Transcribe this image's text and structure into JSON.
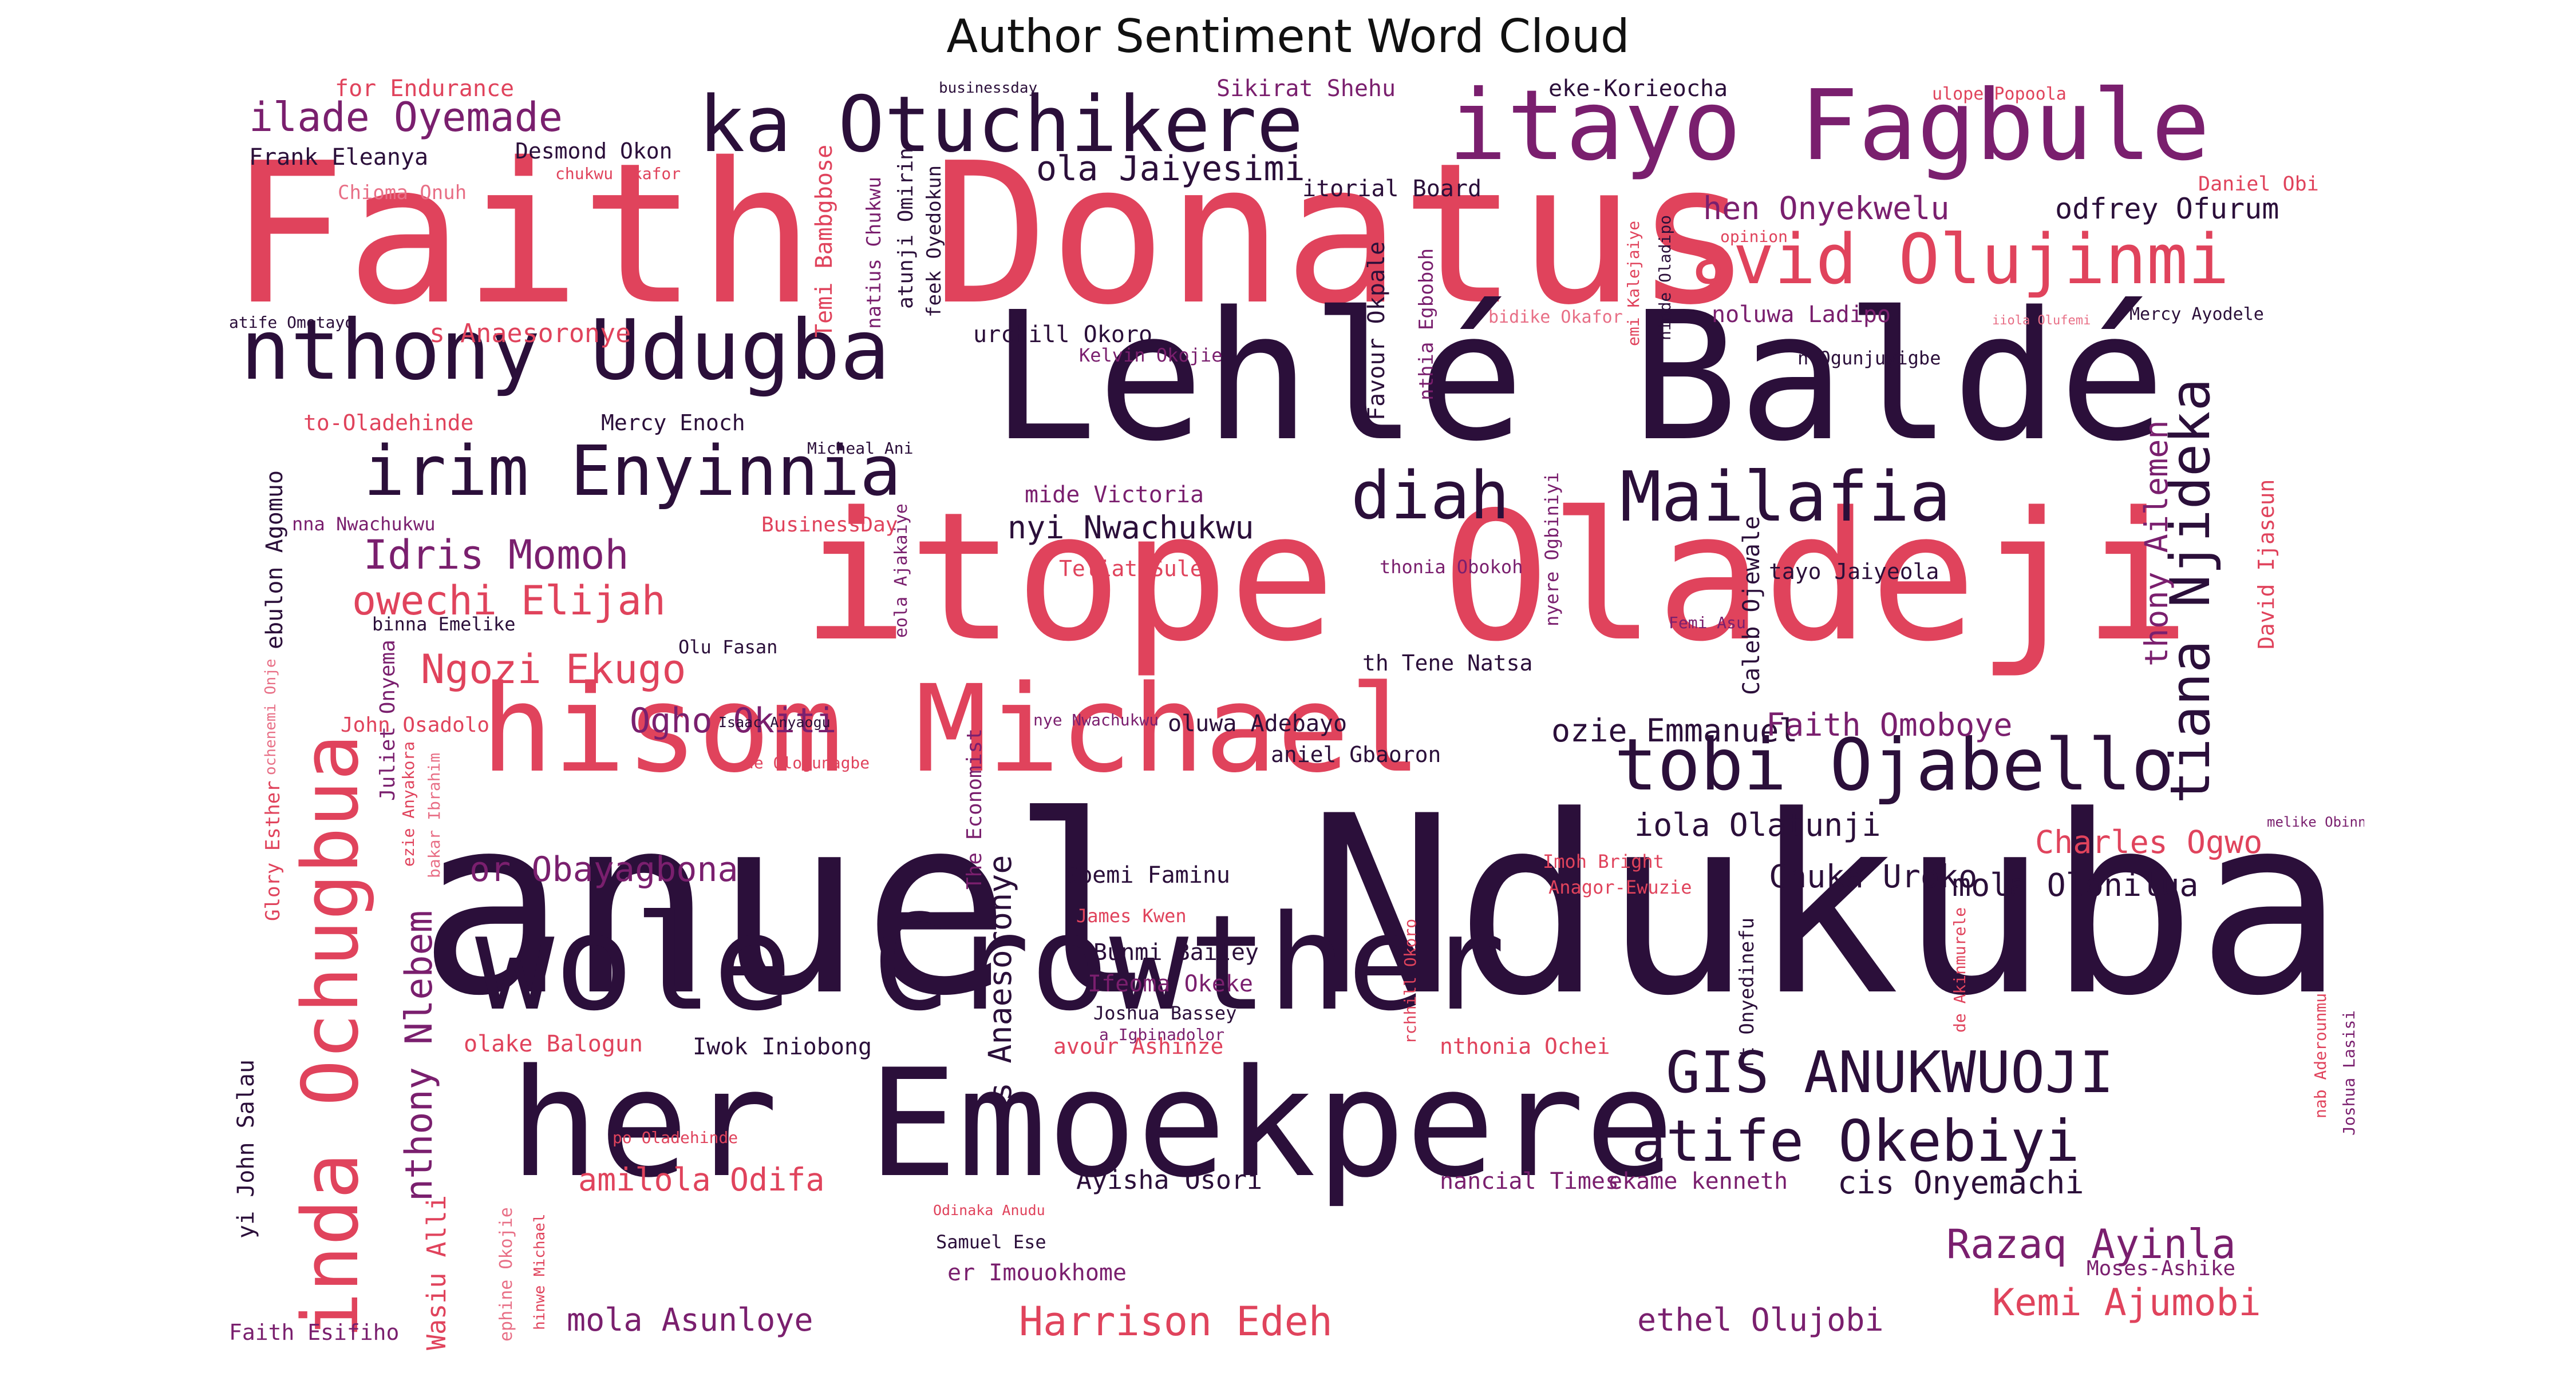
{
  "title": "Author Sentiment Word Cloud",
  "colors": {
    "dark": "#2b0f3a",
    "purple": "#7a1f6e",
    "red": "#e0435c",
    "pink": "#e86f86"
  },
  "words": [
    {
      "text": "anuel Ndukuba",
      "color": "dark"
    },
    {
      "text": "Faith Donatus",
      "color": "red"
    },
    {
      "text": "itope Oladeji",
      "color": "red"
    },
    {
      "text": "Lehlé Baldé",
      "color": "dark"
    },
    {
      "text": "her Emoekpere",
      "color": "dark"
    },
    {
      "text": "wole Crowther",
      "color": "dark"
    },
    {
      "text": "hisom Michael",
      "color": "red"
    },
    {
      "text": "itayo Fagbule",
      "color": "purple"
    },
    {
      "text": "ka Otuchikere",
      "color": "dark"
    },
    {
      "text": "nthony Udugba",
      "color": "dark"
    },
    {
      "text": "inda Ochugbua",
      "color": "red"
    },
    {
      "text": "tobi Ojabello",
      "color": "dark"
    },
    {
      "text": "avid Olujinmi",
      "color": "red"
    },
    {
      "text": "irim Enyinnia",
      "color": "dark"
    },
    {
      "text": "Mailafia",
      "color": "dark"
    },
    {
      "text": "diah",
      "color": "dark"
    },
    {
      "text": "GIS ANUKWUOJI",
      "color": "dark"
    },
    {
      "text": "atife Okebiyi",
      "color": "dark"
    },
    {
      "text": "tiana Njideka",
      "color": "dark"
    },
    {
      "text": "ilade Oyemade",
      "color": "purple"
    },
    {
      "text": "Idris Momoh",
      "color": "purple"
    },
    {
      "text": "owechi Elijah",
      "color": "red"
    },
    {
      "text": "Ngozi Ekugo",
      "color": "red"
    },
    {
      "text": "Ogho Okiti",
      "color": "purple"
    },
    {
      "text": "or Obayagbona",
      "color": "purple"
    },
    {
      "text": "nthony Nlebem",
      "color": "purple"
    },
    {
      "text": "ola Jaiyesimi",
      "color": "dark"
    },
    {
      "text": "hen Onyekwelu",
      "color": "purple"
    },
    {
      "text": "odfrey Ofurum",
      "color": "dark"
    },
    {
      "text": "nyi Nwachukwu",
      "color": "dark"
    },
    {
      "text": "Harrison Edeh",
      "color": "red"
    },
    {
      "text": "Razaq Ayinla",
      "color": "purple"
    },
    {
      "text": "Kemi Ajumobi",
      "color": "red"
    },
    {
      "text": "amilola Odifa",
      "color": "red"
    },
    {
      "text": "mola Asunloye",
      "color": "purple"
    },
    {
      "text": "ethel Olujobi",
      "color": "purple"
    },
    {
      "text": "cis Onyemachi",
      "color": "dark"
    },
    {
      "text": "Charles Ogwo",
      "color": "red"
    },
    {
      "text": "Chuka Uroko",
      "color": "dark"
    },
    {
      "text": "mola Olonilua",
      "color": "dark"
    },
    {
      "text": "iola Olatunji",
      "color": "dark"
    },
    {
      "text": "ozie Emmanuel",
      "color": "dark"
    },
    {
      "text": "Faith Omoboye",
      "color": "purple"
    },
    {
      "text": "thony Ailemen",
      "color": "purple"
    },
    {
      "text": "s Anaesoronye",
      "color": "dark"
    },
    {
      "text": "Frank Eleanya",
      "color": "dark"
    },
    {
      "text": "Desmond Okon",
      "color": "dark"
    },
    {
      "text": "chukwu Okafor",
      "color": "red"
    },
    {
      "text": "Chioma Onuh",
      "color": "pink"
    },
    {
      "text": "for Endurance",
      "color": "red"
    },
    {
      "text": "businessday",
      "color": "dark"
    },
    {
      "text": "Sikirat Shehu",
      "color": "purple"
    },
    {
      "text": "eke-Korieocha",
      "color": "dark"
    },
    {
      "text": "ulope Popoola",
      "color": "red"
    },
    {
      "text": "Daniel Obi",
      "color": "red"
    },
    {
      "text": "opinion",
      "color": "red"
    },
    {
      "text": "itorial Board",
      "color": "dark"
    },
    {
      "text": "Temi Bambgbose",
      "color": "red"
    },
    {
      "text": "natius Chukwu",
      "color": "purple"
    },
    {
      "text": "atunji Omirin",
      "color": "dark"
    },
    {
      "text": "feek Oyedokun",
      "color": "dark"
    },
    {
      "text": "urchill Okoro",
      "color": "dark"
    },
    {
      "text": "Kelvin Okojie",
      "color": "purple"
    },
    {
      "text": "Favour Okpale",
      "color": "dark"
    },
    {
      "text": "nthia Egboboh",
      "color": "purple"
    },
    {
      "text": "bidike Okafor",
      "color": "pink"
    },
    {
      "text": "emi Kalejaiye",
      "color": "red"
    },
    {
      "text": "hinde Oladipo",
      "color": "dark"
    },
    {
      "text": "noluwa Ladipo",
      "color": "purple"
    },
    {
      "text": "iiola Olufemi",
      "color": "pink"
    },
    {
      "text": "Mercy Ayodele",
      "color": "dark"
    },
    {
      "text": "n Ogunjuyigbe",
      "color": "dark"
    },
    {
      "text": "atife Omotayo",
      "color": "dark"
    },
    {
      "text": "s Anaesoronye",
      "color": "red"
    },
    {
      "text": "to-Oladehinde",
      "color": "red"
    },
    {
      "text": "Mercy Enoch",
      "color": "dark"
    },
    {
      "text": "Micheal Ani",
      "color": "dark"
    },
    {
      "text": "ebulon Agomuo",
      "color": "dark"
    },
    {
      "text": "nna Nwachukwu",
      "color": "purple"
    },
    {
      "text": "BusinessDay",
      "color": "red"
    },
    {
      "text": "mide Victoria",
      "color": "purple"
    },
    {
      "text": "Teliat Sule",
      "color": "red"
    },
    {
      "text": "thonia Obokoh",
      "color": "purple"
    },
    {
      "text": "nyere Ogbiniyi",
      "color": "purple"
    },
    {
      "text": "Caleb Ojewale",
      "color": "dark"
    },
    {
      "text": "tayo Jaiyeola",
      "color": "dark"
    },
    {
      "text": "David Ijaseun",
      "color": "red"
    },
    {
      "text": "binna Emelike",
      "color": "dark"
    },
    {
      "text": "Olu Fasan",
      "color": "dark"
    },
    {
      "text": "eola Ajakaiye",
      "color": "purple"
    },
    {
      "text": "Femi Asu",
      "color": "purple"
    },
    {
      "text": "th Tene Natsa",
      "color": "dark"
    },
    {
      "text": "John Osadolor",
      "color": "red"
    },
    {
      "text": "ochenemi Onje",
      "color": "pink"
    },
    {
      "text": "Juliet Onyema",
      "color": "purple"
    },
    {
      "text": "Isaac Anyaogu",
      "color": "dark"
    },
    {
      "text": "ezie Anyakora",
      "color": "red"
    },
    {
      "text": "bakar Ibrahim",
      "color": "pink"
    },
    {
      "text": "de Ologunagbe",
      "color": "red"
    },
    {
      "text": "The Economist",
      "color": "purple"
    },
    {
      "text": "nye Nwachukwu",
      "color": "purple"
    },
    {
      "text": "oluwa Adebayo",
      "color": "dark"
    },
    {
      "text": "aniel Gbaoron",
      "color": "dark"
    },
    {
      "text": "melike Obinna",
      "color": "purple"
    },
    {
      "text": "Glory Esther",
      "color": "red"
    },
    {
      "text": "Gbemi Faminu",
      "color": "dark"
    },
    {
      "text": "Imoh Bright",
      "color": "red"
    },
    {
      "text": "Anagor-Ewuzie",
      "color": "red"
    },
    {
      "text": "James Kwen",
      "color": "red"
    },
    {
      "text": "Bunmi Bailey",
      "color": "dark"
    },
    {
      "text": "Ifeoma Okeke",
      "color": "purple"
    },
    {
      "text": "Joshua Bassey",
      "color": "dark"
    },
    {
      "text": "a Igbinadolor",
      "color": "purple"
    },
    {
      "text": "rchhill Okoro",
      "color": "red"
    },
    {
      "text": "ft Onyedinefu",
      "color": "dark"
    },
    {
      "text": "de Akinmurele",
      "color": "red"
    },
    {
      "text": "nab Aderounmu",
      "color": "red"
    },
    {
      "text": "Joshua Lasisi",
      "color": "purple"
    },
    {
      "text": "yi John Salau",
      "color": "dark"
    },
    {
      "text": "Wasiu Alli",
      "color": "red"
    },
    {
      "text": "olake Balogun",
      "color": "red"
    },
    {
      "text": "Iwok Iniobong",
      "color": "dark"
    },
    {
      "text": "avour Ashinze",
      "color": "red"
    },
    {
      "text": "nthonia Ochei",
      "color": "red"
    },
    {
      "text": "po Oladehinde",
      "color": "red"
    },
    {
      "text": "ephine Okojie",
      "color": "pink"
    },
    {
      "text": "hinwe Michael",
      "color": "red"
    },
    {
      "text": "Ayisha Osori",
      "color": "dark"
    },
    {
      "text": "nancial Times",
      "color": "purple"
    },
    {
      "text": "ekame kenneth",
      "color": "purple"
    },
    {
      "text": "Odinaka Anudu",
      "color": "red"
    },
    {
      "text": "Samuel Ese",
      "color": "dark"
    },
    {
      "text": "er Imouokhome",
      "color": "purple"
    },
    {
      "text": "Moses-Ashike",
      "color": "purple"
    },
    {
      "text": "Faith Esifiho",
      "color": "purple"
    }
  ]
}
